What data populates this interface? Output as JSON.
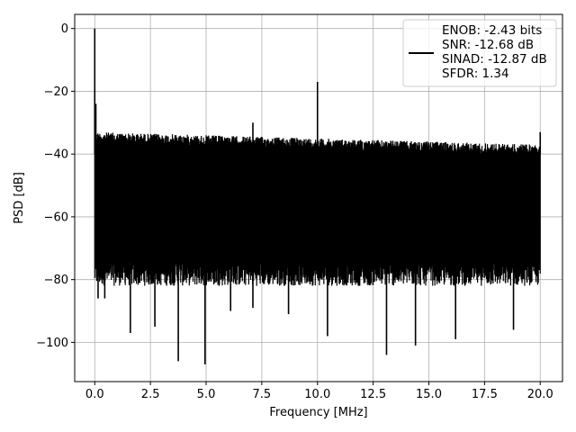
{
  "chart_data": {
    "type": "line",
    "title": "",
    "xlabel": "Frequency [MHz]",
    "ylabel": "PSD [dB]",
    "xlim": [
      -0.9,
      21.0
    ],
    "ylim": [
      -112.5,
      4.5
    ],
    "xticks": [
      0.0,
      2.5,
      5.0,
      7.5,
      10.0,
      12.5,
      15.0,
      17.5,
      20.0
    ],
    "xtick_labels": [
      "0.0",
      "2.5",
      "5.0",
      "7.5",
      "10.0",
      "12.5",
      "15.0",
      "17.5",
      "20.0"
    ],
    "yticks": [
      0,
      -20,
      -40,
      -60,
      -80,
      -100
    ],
    "ytick_labels": [
      "0",
      "−20",
      "−40",
      "−60",
      "−80",
      "−100"
    ],
    "grid": true,
    "legend_position": "top-right",
    "series": [
      {
        "color": "#000000",
        "label_lines": [
          "ENOB: -2.43 bits",
          "SNR: -12.68 dB",
          "SINAD: -12.87 dB",
          "SFDR: 1.34"
        ],
        "noise_floor": {
          "x_range": [
            0.0,
            20.0
          ],
          "upper_db_start": -33,
          "upper_db_end": -37,
          "lower_db": -78
        },
        "peaks": [
          {
            "x": 0.0,
            "y": 0
          },
          {
            "x": 0.05,
            "y": -24
          },
          {
            "x": 7.1,
            "y": -30
          },
          {
            "x": 10.0,
            "y": -17
          },
          {
            "x": 20.0,
            "y": -33
          }
        ],
        "dips": [
          {
            "x": 0.15,
            "y": -86
          },
          {
            "x": 0.45,
            "y": -86
          },
          {
            "x": 1.6,
            "y": -97
          },
          {
            "x": 2.7,
            "y": -95
          },
          {
            "x": 3.75,
            "y": -106
          },
          {
            "x": 4.95,
            "y": -107
          },
          {
            "x": 6.1,
            "y": -90
          },
          {
            "x": 7.1,
            "y": -89
          },
          {
            "x": 8.7,
            "y": -91
          },
          {
            "x": 10.45,
            "y": -98
          },
          {
            "x": 13.1,
            "y": -104
          },
          {
            "x": 14.4,
            "y": -101
          },
          {
            "x": 16.2,
            "y": -99
          },
          {
            "x": 18.8,
            "y": -96
          }
        ]
      }
    ]
  }
}
